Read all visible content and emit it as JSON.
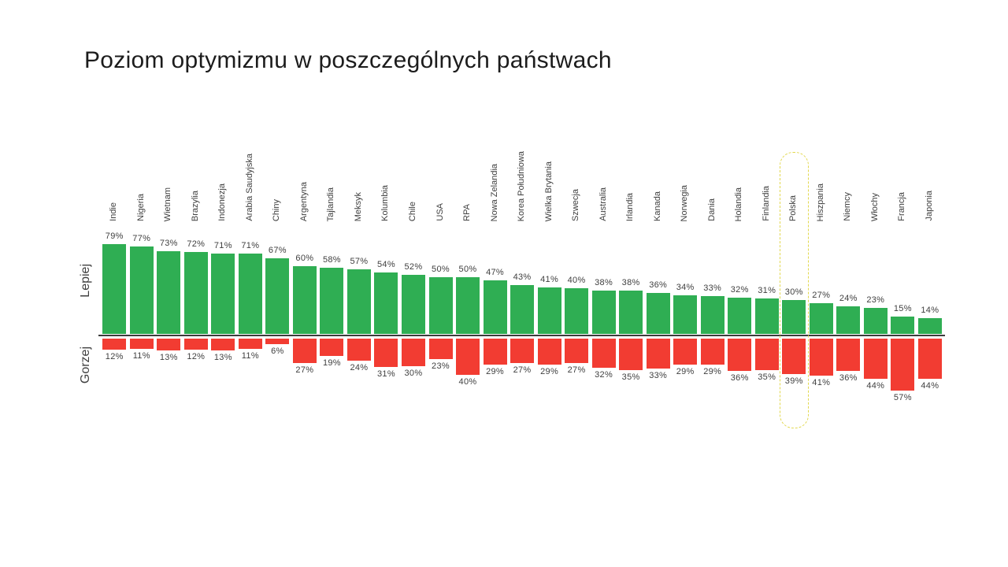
{
  "title": "Poziom optymizmu w poszczególnych państwach",
  "axis": {
    "better_label": "Lepiej",
    "worse_label": "Gorzej"
  },
  "colors": {
    "better_bar": "#2fae53",
    "worse_bar": "#f23c32",
    "baseline": "#3c3c3c",
    "label_text": "#3f3f3f",
    "title_text": "#1c1c1c",
    "highlight_border": "#e2d84e",
    "background": "#ffffff"
  },
  "chart_data": {
    "type": "bar",
    "orientation": "diverging-vertical",
    "title": "Poziom optymizmu w poszczególnych państwach",
    "categories": [
      "Indie",
      "Nigeria",
      "Wietnam",
      "Brazylia",
      "Indonezja",
      "Arabia Saudyjska",
      "Chiny",
      "Argentyna",
      "Tajlandia",
      "Meksyk",
      "Kolumbia",
      "Chile",
      "USA",
      "RPA",
      "Nowa Zelandia",
      "Korea Południowa",
      "Wielka Brytania",
      "Szwecja",
      "Australia",
      "Irlandia",
      "Kanada",
      "Norwegia",
      "Dania",
      "Holandia",
      "Finlandia",
      "Polska",
      "Hiszpania",
      "Niemcy",
      "Włochy",
      "Francja",
      "Japonia"
    ],
    "series": [
      {
        "name": "Lepiej",
        "color": "#2fae53",
        "values": [
          79,
          77,
          73,
          72,
          71,
          71,
          67,
          60,
          58,
          57,
          54,
          52,
          50,
          50,
          47,
          43,
          41,
          40,
          38,
          38,
          36,
          34,
          33,
          32,
          31,
          30,
          27,
          24,
          23,
          15,
          14
        ]
      },
      {
        "name": "Gorzej",
        "color": "#f23c32",
        "values": [
          12,
          11,
          13,
          12,
          13,
          11,
          6,
          27,
          19,
          24,
          31,
          30,
          23,
          40,
          29,
          27,
          29,
          27,
          32,
          35,
          33,
          29,
          29,
          36,
          35,
          39,
          41,
          36,
          44,
          57,
          44
        ]
      }
    ],
    "value_suffix": "%",
    "highlighted_category": "Polska",
    "grid": false,
    "legend": false
  }
}
